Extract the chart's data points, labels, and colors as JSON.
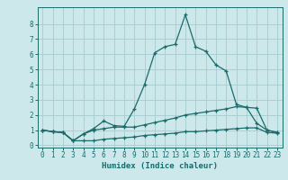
{
  "xlabel": "Humidex (Indice chaleur)",
  "bg_color": "#cce8ea",
  "grid_color": "#aacfd2",
  "line_color": "#1a6b6b",
  "x_values": [
    0,
    1,
    2,
    3,
    4,
    5,
    6,
    7,
    8,
    9,
    10,
    11,
    12,
    13,
    14,
    15,
    16,
    17,
    18,
    19,
    20,
    21,
    22,
    23
  ],
  "line1": [
    1.0,
    0.9,
    0.85,
    0.3,
    0.75,
    1.1,
    1.6,
    1.3,
    1.25,
    2.4,
    4.0,
    6.1,
    6.5,
    6.65,
    8.6,
    6.5,
    6.2,
    5.3,
    4.9,
    2.7,
    2.5,
    1.45,
    1.0,
    0.85
  ],
  "line2": [
    1.0,
    0.9,
    0.85,
    0.3,
    0.75,
    1.0,
    1.1,
    1.2,
    1.2,
    1.2,
    1.35,
    1.5,
    1.65,
    1.8,
    2.0,
    2.1,
    2.2,
    2.3,
    2.4,
    2.55,
    2.5,
    2.45,
    1.0,
    0.85
  ],
  "line3": [
    1.0,
    0.9,
    0.85,
    0.3,
    0.3,
    0.3,
    0.4,
    0.45,
    0.5,
    0.55,
    0.65,
    0.7,
    0.75,
    0.8,
    0.9,
    0.9,
    0.95,
    1.0,
    1.05,
    1.1,
    1.15,
    1.15,
    0.85,
    0.8
  ],
  "ylim": [
    -0.15,
    9.1
  ],
  "yticks": [
    0,
    1,
    2,
    3,
    4,
    5,
    6,
    7,
    8
  ],
  "xlim": [
    -0.5,
    23.5
  ],
  "xticks": [
    0,
    1,
    2,
    3,
    4,
    5,
    6,
    7,
    8,
    9,
    10,
    11,
    12,
    13,
    14,
    15,
    16,
    17,
    18,
    19,
    20,
    21,
    22,
    23
  ]
}
